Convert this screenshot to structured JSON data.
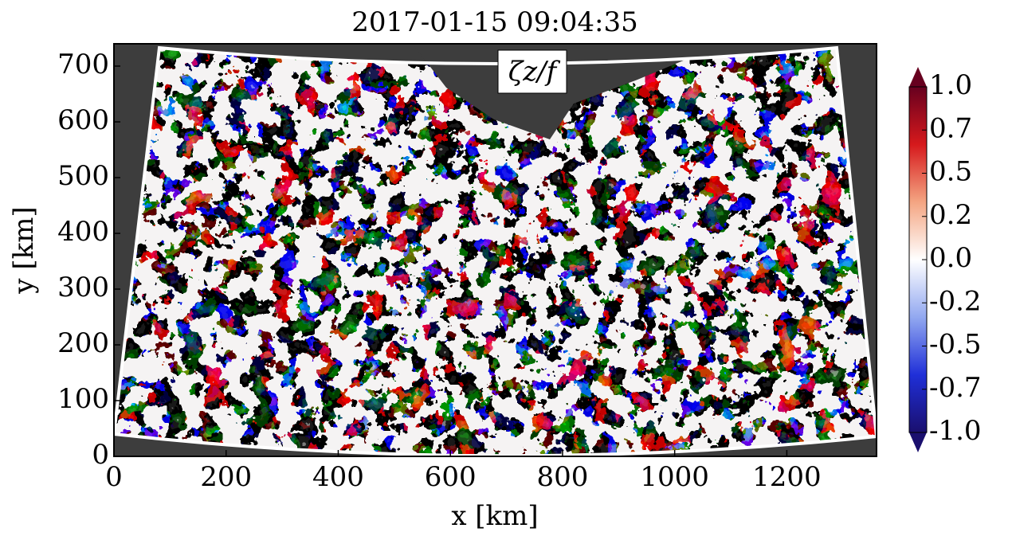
{
  "chart_data": {
    "type": "heatmap",
    "title": "2017-01-15 09:04:35",
    "x_label": "x [km]",
    "y_label": "y [km]",
    "annotation": "ζz/f",
    "xlim": [
      0,
      1360
    ],
    "ylim": [
      0,
      740
    ],
    "xticks": [
      0,
      200,
      400,
      600,
      800,
      1000,
      1200
    ],
    "yticks": [
      0,
      100,
      200,
      300,
      400,
      500,
      600,
      700
    ],
    "colorbar": {
      "ticks": [
        {
          "value": 1,
          "label": "1.0"
        },
        0.7,
        0.5,
        0.2,
        {
          "value": 0,
          "label": "0.0"
        },
        -0.2,
        -0.5,
        -0.7,
        {
          "value": -1,
          "label": "-1.0"
        }
      ],
      "colors": [
        "#67001f",
        "#d6191c",
        "#f4a582",
        "#ffffff",
        "#92a8f0",
        "#1f2fd8",
        "#1a0f6e"
      ]
    }
  }
}
